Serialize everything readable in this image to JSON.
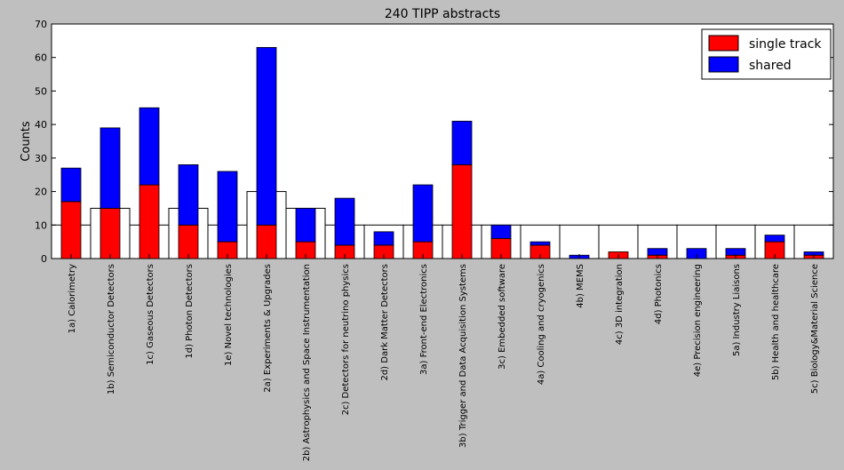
{
  "chart_data": {
    "type": "bar",
    "stacked": true,
    "title": "240 TIPP abstracts",
    "xlabel": "",
    "ylabel": "Counts",
    "ylim": [
      0,
      70
    ],
    "yticks": [
      0,
      10,
      20,
      30,
      40,
      50,
      60,
      70
    ],
    "legend": {
      "placement": "top-right",
      "entries": [
        "single track",
        "shared"
      ]
    },
    "categories": [
      "1a) Calorimetry",
      "1b) Semiconductor Detectors",
      "1c) Gaseous Detectors",
      "1d) Photon Detectors",
      "1e) Novel technologies",
      "2a) Experiments & Upgrades",
      "2b) Astrophysics and Space Instrumentation",
      "2c) Detectors for neutrino physics",
      "2d) Dark Matter Detectors",
      "3a) Front-end Electronics",
      "3b) Trigger and Data Acquisition Systems",
      "3c) Embedded software",
      "4a) Cooling and cryogenics",
      "4b) MEMS",
      "4c) 3D integration",
      "4d) Photonics",
      "4e) Precision engineering",
      "5a) Industry Liaisons",
      "5b) Health and healthcare",
      "5c) Biology&Material Science"
    ],
    "series": [
      {
        "name": "single track",
        "color": "#ff0000",
        "values": [
          17,
          15,
          22,
          10,
          5,
          10,
          5,
          4,
          4,
          5,
          28,
          6,
          4,
          0,
          2,
          1,
          0,
          1,
          5,
          1
        ]
      },
      {
        "name": "shared",
        "color": "#0000ff",
        "values": [
          10,
          24,
          23,
          18,
          21,
          53,
          10,
          14,
          4,
          17,
          13,
          4,
          1,
          1,
          0,
          2,
          3,
          2,
          2,
          1
        ]
      }
    ],
    "target_outline": {
      "color": "#000000",
      "values": [
        10,
        15,
        10,
        15,
        10,
        20,
        15,
        10,
        10,
        10,
        10,
        10,
        10,
        10,
        10,
        10,
        10,
        10,
        10,
        10
      ]
    },
    "grid": false
  }
}
